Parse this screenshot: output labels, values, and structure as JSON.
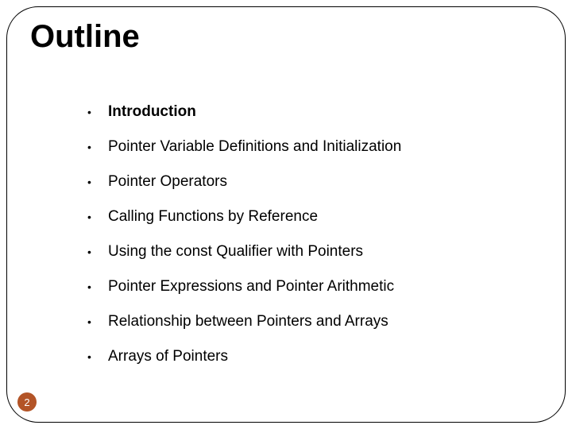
{
  "title": "Outline",
  "title_fontsize": 40,
  "title_color": "#000000",
  "background_color": "#ffffff",
  "frame_border_color": "#000000",
  "frame_border_radius": 40,
  "bullet_char": "•",
  "items": [
    {
      "text": "Introduction",
      "bold": true
    },
    {
      "text": "Pointer Variable Definitions and Initialization",
      "bold": false
    },
    {
      "text": "Pointer Operators",
      "bold": false
    },
    {
      "text": "Calling Functions by Reference",
      "bold": false
    },
    {
      "text": "Using the const Qualifier with Pointers",
      "bold": false
    },
    {
      "text": "Pointer Expressions and Pointer Arithmetic",
      "bold": false
    },
    {
      "text": "Relationship between Pointers and Arrays",
      "bold": false
    },
    {
      "text": "Arrays of Pointers",
      "bold": false
    }
  ],
  "item_fontsize": 19,
  "item_spacing": 22,
  "page_number": "2",
  "page_number_bg": "#b35427",
  "page_number_color": "#ffffff"
}
